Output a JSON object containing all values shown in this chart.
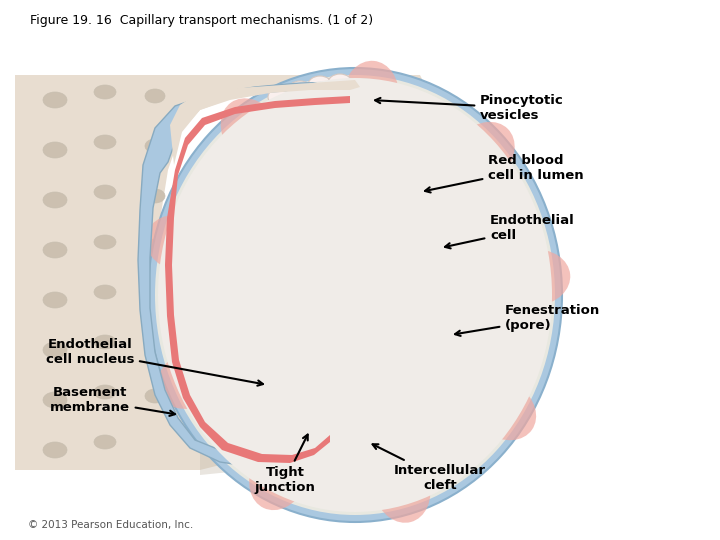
{
  "title": "Figure 19. 16  Capillary transport mechanisms. (1 of 2)",
  "copyright": "© 2013 Pearson Education, Inc.",
  "labels": {
    "pinocytotic_vesicles": "Pinocytotic\nvesicles",
    "red_blood_cell": "Red blood\ncell in lumen",
    "endothelial_cell": "Endothelial\ncell",
    "fenestration": "Fenestration\n(pore)",
    "endothelial_nucleus": "Endothelial\ncell nucleus",
    "basement_membrane": "Basement\nmembrane",
    "tight_junction": "Tight\njunction",
    "intercellular_cleft": "Intercellular\ncleft"
  },
  "colors": {
    "background": "#ffffff",
    "tube_outer": "#e8ddd0",
    "tube_shadow": "#c8bfb0",
    "tube_dots": "#ccc0b0",
    "blue_wall": "#aac8e0",
    "blue_wall_light": "#c8dff0",
    "endo_pink": "#e87878",
    "endo_light": "#f0a8a0",
    "endo_very_light": "#fadadd",
    "lumen_dark": "#c83030",
    "lumen_mid": "#d84040",
    "rbc_dark": "#c03030",
    "rbc_mid": "#d86060",
    "rbc_light": "#eeaaaa",
    "rbc_center": "#f5c8c8",
    "nucleus_purple": "#9060a8",
    "nucleus_dark": "#604880",
    "white_areas": "#faf0ee",
    "intercell_white": "#f8f0f0",
    "title_color": "#000000",
    "label_color": "#000000",
    "copyright_color": "#555555"
  },
  "annotation_fontsize": 9.5,
  "title_fontsize": 9.0,
  "copyright_fontsize": 7.5
}
